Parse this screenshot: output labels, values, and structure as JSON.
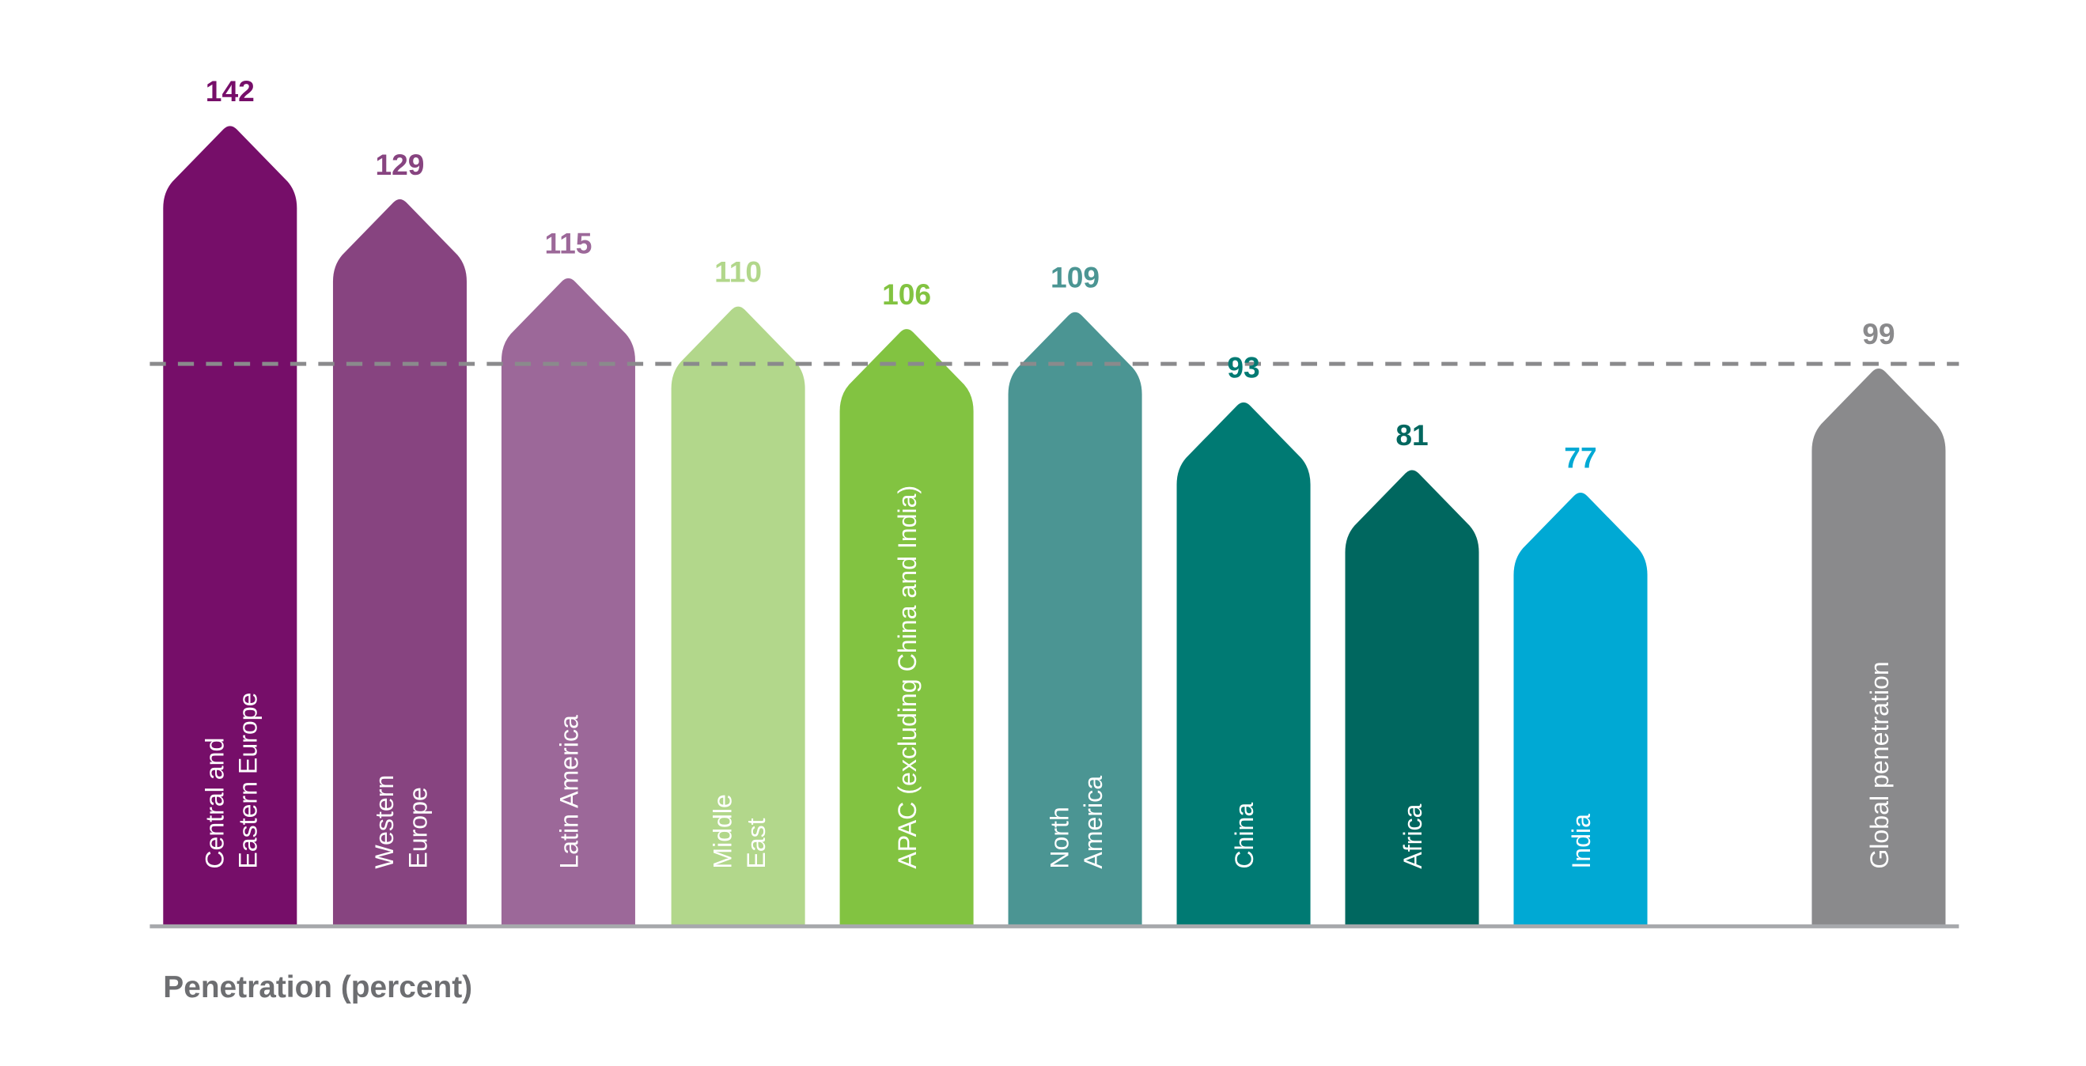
{
  "chart_data": {
    "type": "bar",
    "ylabel": "Penetration (percent)",
    "categories": [
      [
        "Central and",
        "Eastern Europe"
      ],
      [
        "Western",
        "Europe"
      ],
      [
        "Latin America"
      ],
      [
        "Middle",
        "East"
      ],
      [
        "APAC (excluding China and India)"
      ],
      [
        "North",
        "America"
      ],
      [
        "China"
      ],
      [
        "Africa"
      ],
      [
        "India"
      ],
      [
        "Global penetration"
      ]
    ],
    "values": [
      142,
      129,
      115,
      110,
      106,
      109,
      93,
      81,
      77,
      99
    ],
    "colors": [
      "#760e69",
      "#874480",
      "#9c6899",
      "#b2d78b",
      "#82c341",
      "#4b9593",
      "#007a73",
      "#00675f",
      "#00a9d4",
      "#8a8a8c"
    ],
    "reference_line": {
      "value": 99,
      "style": "dashed",
      "color": "#8a8a8c"
    },
    "grid": false,
    "legend": "none"
  }
}
